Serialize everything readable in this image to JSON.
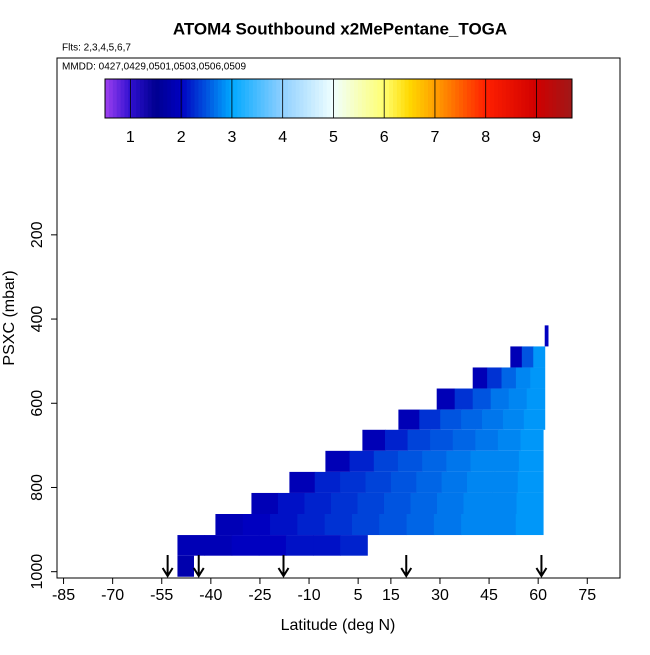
{
  "chart_data": {
    "type": "curtain",
    "title": "ATOM4 Southbound x2MePentane_TOGA",
    "subtitle": "Flts: 2,3,4,5,6,7",
    "annotation": "MMDD: 0427,0429,0501,0503,0506,0509",
    "x_label": "Latitude (deg N)",
    "y_label": "PSXC (mbar)",
    "xlim": [
      -87,
      85
    ],
    "xticks": [
      -85,
      -70,
      -55,
      -40,
      -25,
      -10,
      5,
      15,
      30,
      45,
      60,
      75
    ],
    "ylim": [
      1015,
      -220
    ],
    "yticks": [
      200,
      400,
      600,
      800,
      1000
    ],
    "colorbar": {
      "lim": [
        0.5,
        9.7
      ],
      "ticks": [
        1,
        2,
        3,
        4,
        5,
        6,
        7,
        8,
        9
      ],
      "stops": [
        0.5,
        1,
        1.5,
        2,
        3,
        4,
        5,
        6,
        6.5,
        7,
        8,
        9,
        9.7
      ],
      "colors": [
        "#a040f0",
        "#3010d0",
        "#000090",
        "#0000c0",
        "#00a8ff",
        "#90d0ff",
        "#f0ffff",
        "#ffff70",
        "#ffd800",
        "#ffa000",
        "#ff2000",
        "#d00000",
        "#a01818"
      ]
    },
    "rows": [
      {
        "p": [
          415,
          465
        ],
        "lat": [
          62,
          63
        ],
        "values": [
          2.0
        ]
      },
      {
        "p": [
          465,
          515
        ],
        "lat": [
          51.5,
          62
        ],
        "values": [
          1.9,
          2.5,
          2.9
        ]
      },
      {
        "p": [
          515,
          565
        ],
        "lat": [
          40,
          62
        ],
        "values": [
          1.9,
          2.3,
          2.6,
          2.8,
          2.9
        ]
      },
      {
        "p": [
          565,
          615
        ],
        "lat": [
          29,
          62
        ],
        "values": [
          1.9,
          2.3,
          2.5,
          2.7,
          2.8,
          2.9
        ]
      },
      {
        "p": [
          615,
          663
        ],
        "lat": [
          17.3,
          62
        ],
        "values": [
          1.9,
          2.3,
          2.5,
          2.6,
          2.7,
          2.8,
          2.9
        ]
      },
      {
        "p": [
          663,
          713
        ],
        "lat": [
          6.3,
          61.5
        ],
        "values": [
          1.9,
          2.2,
          2.4,
          2.5,
          2.6,
          2.7,
          2.8,
          2.9
        ]
      },
      {
        "p": [
          713,
          763
        ],
        "lat": [
          -5,
          61.5
        ],
        "values": [
          1.9,
          2.2,
          2.4,
          2.5,
          2.6,
          2.7,
          2.8,
          2.8,
          2.9
        ]
      },
      {
        "p": [
          763,
          813
        ],
        "lat": [
          -16,
          61.5
        ],
        "values": [
          1.9,
          2.2,
          2.3,
          2.4,
          2.5,
          2.6,
          2.7,
          2.8,
          2.8,
          2.9
        ]
      },
      {
        "p": [
          813,
          863
        ],
        "lat": [
          -27.6,
          61.5
        ],
        "values": [
          1.9,
          2.1,
          2.2,
          2.3,
          2.4,
          2.5,
          2.6,
          2.7,
          2.8,
          2.8,
          2.9
        ]
      },
      {
        "p": [
          863,
          913
        ],
        "lat": [
          -38.6,
          61.5
        ],
        "values": [
          1.9,
          2.0,
          2.1,
          2.2,
          2.3,
          2.4,
          2.5,
          2.6,
          2.7,
          2.8,
          2.8,
          2.9
        ]
      },
      {
        "p": [
          913,
          962
        ],
        "lat": [
          -50.2,
          7.8
        ],
        "values": [
          1.9,
          1.9,
          2.0,
          2.0,
          2.1,
          2.1,
          2.2
        ]
      },
      {
        "p": [
          962,
          1012
        ],
        "lat": [
          -50.2,
          -45.3
        ],
        "values": [
          1.8
        ]
      }
    ],
    "markers": [
      -53.2,
      -43.7,
      -17.8,
      19.7,
      61.0
    ]
  }
}
